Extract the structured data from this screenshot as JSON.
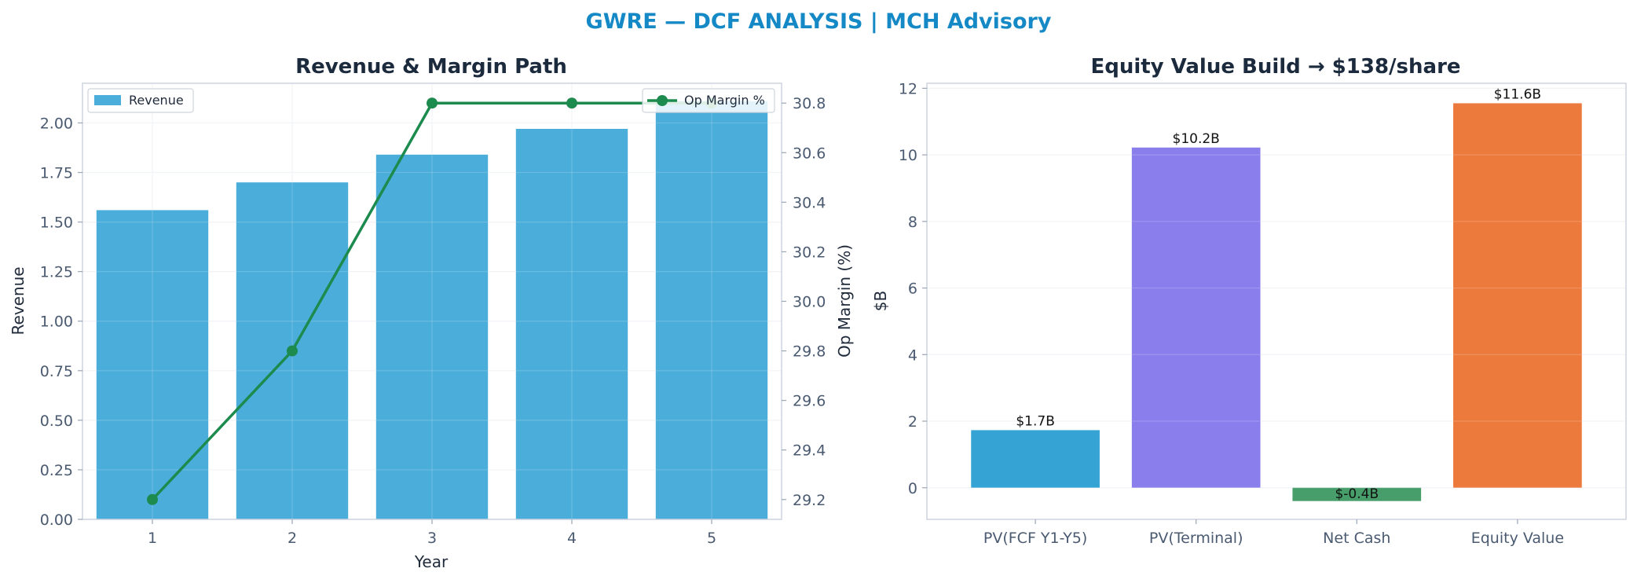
{
  "figure": {
    "title": "GWRE — DCF ANALYSIS | MCH Advisory"
  },
  "chart_data": [
    {
      "type": "bar",
      "title": "Revenue & Margin Path",
      "xlabel": "Year",
      "ylabel": "Revenue",
      "y2label": "Op Margin (%)",
      "categories": [
        "1",
        "2",
        "3",
        "4",
        "5"
      ],
      "ylim": [
        0,
        2.2
      ],
      "yticks": [
        "0.00",
        "0.25",
        "0.50",
        "0.75",
        "1.00",
        "1.25",
        "1.50",
        "1.75",
        "2.00"
      ],
      "y2lim": [
        29.12,
        30.88
      ],
      "y2ticks": [
        "29.2",
        "29.4",
        "29.6",
        "29.8",
        "30.0",
        "30.2",
        "30.4",
        "30.6",
        "30.8"
      ],
      "series": [
        {
          "name": "Revenue",
          "kind": "bar",
          "axis": "left",
          "color": "#4badd9",
          "values": [
            1.56,
            1.7,
            1.84,
            1.97,
            2.11
          ]
        },
        {
          "name": "Op Margin %",
          "kind": "line",
          "axis": "right",
          "color": "#1d8a4e",
          "values": [
            29.2,
            29.8,
            30.8,
            30.8,
            30.8
          ]
        }
      ],
      "legend": [
        "top-left",
        "top-right"
      ],
      "grid": true
    },
    {
      "type": "bar",
      "title": "Equity Value Build → $138/share",
      "ylabel": "$B",
      "categories": [
        "PV(FCF Y1-Y5)",
        "PV(Terminal)",
        "Net Cash",
        "Equity Value"
      ],
      "values": [
        1.73,
        10.22,
        -0.4,
        11.55
      ],
      "data_labels": [
        "$1.7B",
        "$10.2B",
        "$-0.4B",
        "$11.6B"
      ],
      "colors": [
        "#35a3d4",
        "#8a7eec",
        "#489e6a",
        "#ec7a3d"
      ],
      "ylim": [
        -0.95,
        12.15
      ],
      "yticks": [
        "0",
        "2",
        "4",
        "6",
        "8",
        "10",
        "12"
      ],
      "grid": true
    }
  ]
}
